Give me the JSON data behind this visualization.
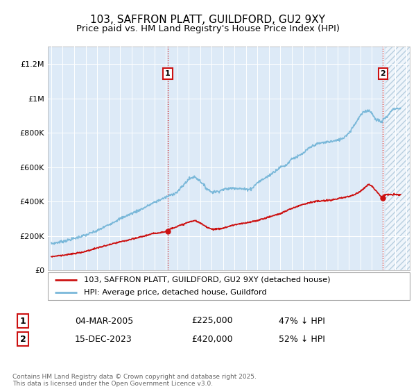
{
  "title": "103, SAFFRON PLATT, GUILDFORD, GU2 9XY",
  "subtitle": "Price paid vs. HM Land Registry's House Price Index (HPI)",
  "ylim": [
    0,
    1300000
  ],
  "xlim_start": 1994.7,
  "xlim_end": 2026.3,
  "hpi_color": "#7ab8d9",
  "price_color": "#cc1111",
  "bg_color": "#ddeaf7",
  "marker1_date": 2005.17,
  "marker2_date": 2023.96,
  "legend_line1": "103, SAFFRON PLATT, GUILDFORD, GU2 9XY (detached house)",
  "legend_line2": "HPI: Average price, detached house, Guildford",
  "table_row1": [
    "1",
    "04-MAR-2005",
    "£225,000",
    "47% ↓ HPI"
  ],
  "table_row2": [
    "2",
    "15-DEC-2023",
    "£420,000",
    "52% ↓ HPI"
  ],
  "footer": "Contains HM Land Registry data © Crown copyright and database right 2025.\nThis data is licensed under the Open Government Licence v3.0.",
  "title_fontsize": 11,
  "subtitle_fontsize": 9.5,
  "hpi_anchors_x": [
    1995,
    1996,
    1997,
    1998,
    1999,
    2000,
    2001,
    2002,
    2003,
    2004,
    2005,
    2006,
    2007,
    2007.5,
    2008,
    2008.5,
    2009,
    2009.5,
    2010,
    2010.5,
    2011,
    2012,
    2012.5,
    2013,
    2014,
    2015,
    2015.5,
    2016,
    2016.5,
    2017,
    2017.5,
    2018,
    2018.5,
    2019,
    2019.5,
    2020,
    2020.5,
    2021,
    2021.5,
    2022,
    2022.3,
    2022.6,
    2022.9,
    2023,
    2023.3,
    2023.6,
    2023.9,
    2024,
    2024.3,
    2024.6,
    2024.9,
    2025.5
  ],
  "hpi_anchors_y": [
    155000,
    168000,
    185000,
    205000,
    230000,
    265000,
    300000,
    330000,
    360000,
    395000,
    425000,
    455000,
    530000,
    545000,
    520000,
    480000,
    455000,
    458000,
    470000,
    475000,
    480000,
    470000,
    475000,
    510000,
    550000,
    600000,
    610000,
    650000,
    660000,
    680000,
    710000,
    730000,
    740000,
    745000,
    750000,
    755000,
    770000,
    800000,
    850000,
    900000,
    920000,
    930000,
    925000,
    910000,
    880000,
    870000,
    860000,
    880000,
    890000,
    920000,
    940000,
    940000
  ],
  "price_anchors_x": [
    1995,
    1996,
    1997,
    1998,
    1999,
    2000,
    2001,
    2002,
    2003,
    2004,
    2005,
    2005.5,
    2006,
    2007,
    2007.5,
    2008,
    2008.5,
    2009,
    2009.5,
    2010,
    2011,
    2012,
    2013,
    2014,
    2015,
    2016,
    2017,
    2018,
    2019,
    2020,
    2021,
    2021.5,
    2022,
    2022.5,
    2022.7,
    2023,
    2023.9,
    2024,
    2024.3,
    2025.5
  ],
  "price_anchors_y": [
    80000,
    88000,
    97000,
    110000,
    130000,
    148000,
    165000,
    180000,
    198000,
    215000,
    225000,
    245000,
    255000,
    280000,
    290000,
    275000,
    255000,
    240000,
    240000,
    245000,
    265000,
    275000,
    290000,
    310000,
    330000,
    360000,
    385000,
    400000,
    405000,
    415000,
    430000,
    440000,
    460000,
    490000,
    500000,
    490000,
    420000,
    435000,
    440000,
    440000
  ],
  "marker1_price_y": 225000,
  "marker2_price_y": 420000
}
